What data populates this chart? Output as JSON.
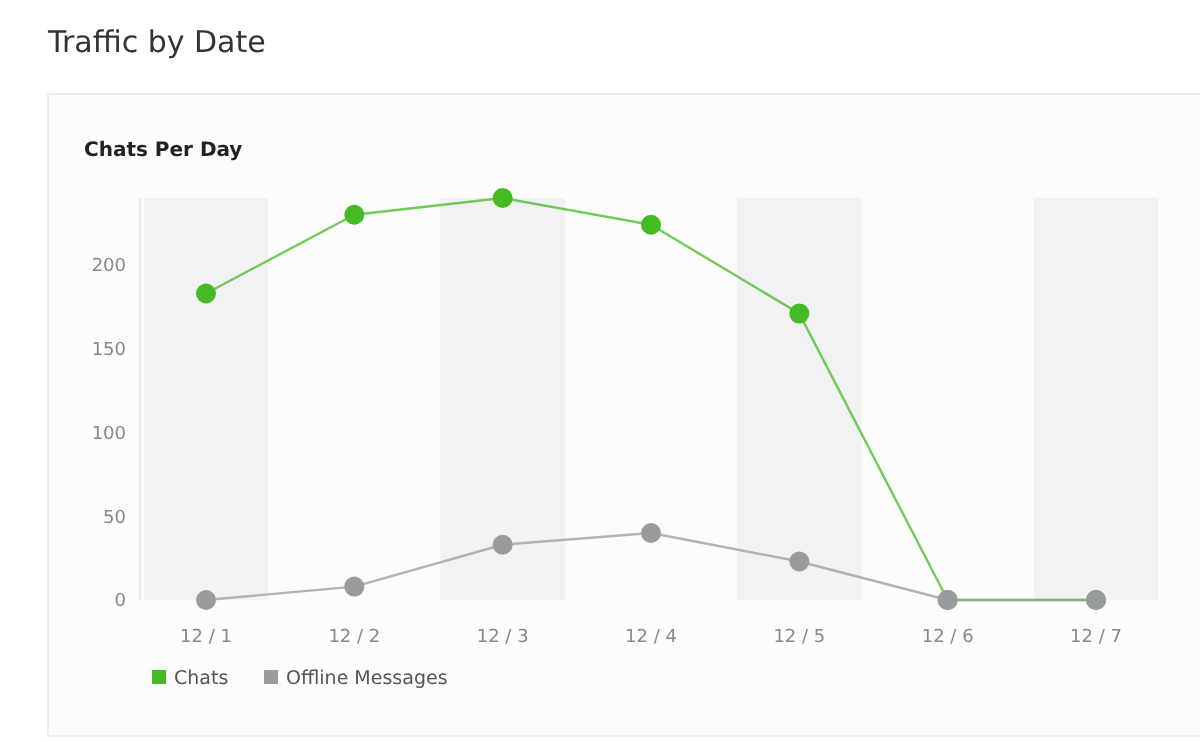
{
  "chart_data": {
    "type": "line",
    "title": "Traffic by Date",
    "subtitle": "Chats Per Day",
    "categories": [
      "12 / 1",
      "12 / 2",
      "12 / 3",
      "12 / 4",
      "12 / 5",
      "12 / 6",
      "12 / 7"
    ],
    "series": [
      {
        "name": "Chats",
        "color": "#44bb22",
        "values": [
          183,
          230,
          240,
          224,
          171,
          0,
          0
        ]
      },
      {
        "name": "Offline Messages",
        "color": "#999b9c",
        "values": [
          0,
          8,
          33,
          40,
          23,
          0,
          0
        ]
      }
    ],
    "bands": [
      {
        "axis": "x",
        "from": "12 / 1",
        "to": "12 / 1",
        "color": "#f2f2f4"
      },
      {
        "axis": "x",
        "from": "12 / 3",
        "to": "12 / 3",
        "color": "#f2f2f4"
      },
      {
        "axis": "x",
        "from": "12 / 5",
        "to": "12 / 5",
        "color": "#f2f2f4"
      },
      {
        "axis": "x",
        "from": "12 / 7",
        "to": "12 / 7",
        "color": "#f2f2f4"
      }
    ],
    "ylim": [
      0,
      240
    ],
    "yticks": [
      0,
      50,
      100,
      150,
      200
    ],
    "grid": false,
    "legend": "bottom left",
    "marker": "circle",
    "line_style": "solid"
  }
}
